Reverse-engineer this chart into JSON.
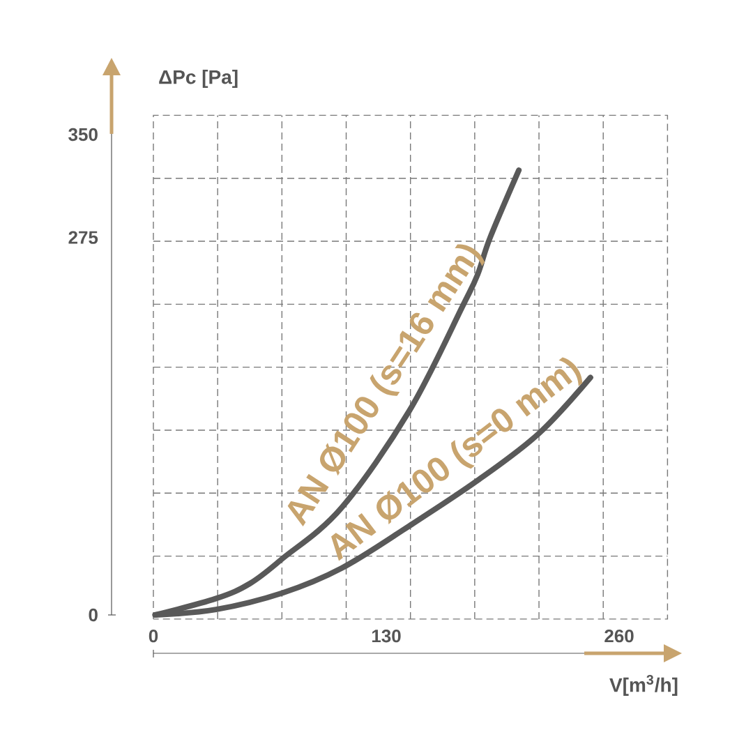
{
  "chart_data": {
    "type": "line",
    "xlabel": "V[m$^{3}$/h]",
    "ylabel": "ΔPc [Pa]",
    "xlim": [
      0,
      287
    ],
    "ylim": [
      -3,
      364
    ],
    "xticks": [
      0,
      130,
      260
    ],
    "yticks": [
      0,
      275,
      350
    ],
    "grid": true,
    "marker": "none",
    "line_style": "solid",
    "series": [
      {
        "name": "AN Ø100 (s=16 mm)",
        "color": "#595959",
        "x": [
          1,
          35,
          54,
          72,
          105,
          143,
          173,
          181,
          188,
          204
        ],
        "values": [
          0,
          12,
          23,
          41,
          78,
          149,
          226,
          248,
          275,
          324
        ]
      },
      {
        "name": "AN Ø100 (s=0 mm)",
        "color": "#595959",
        "x": [
          1,
          35,
          72,
          105,
          143,
          181,
          215,
          244
        ],
        "values": [
          0,
          4,
          16,
          34,
          65,
          98,
          132,
          173
        ]
      }
    ]
  }
}
